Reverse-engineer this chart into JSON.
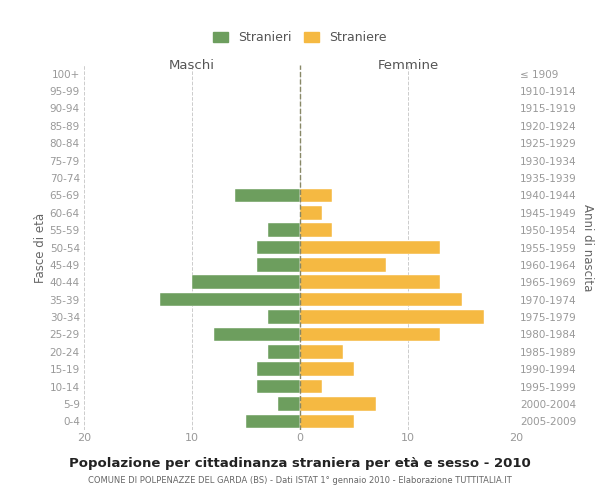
{
  "age_groups": [
    "100+",
    "95-99",
    "90-94",
    "85-89",
    "80-84",
    "75-79",
    "70-74",
    "65-69",
    "60-64",
    "55-59",
    "50-54",
    "45-49",
    "40-44",
    "35-39",
    "30-34",
    "25-29",
    "20-24",
    "15-19",
    "10-14",
    "5-9",
    "0-4"
  ],
  "birth_years": [
    "≤ 1909",
    "1910-1914",
    "1915-1919",
    "1920-1924",
    "1925-1929",
    "1930-1934",
    "1935-1939",
    "1940-1944",
    "1945-1949",
    "1950-1954",
    "1955-1959",
    "1960-1964",
    "1965-1969",
    "1970-1974",
    "1975-1979",
    "1980-1984",
    "1985-1989",
    "1990-1994",
    "1995-1999",
    "2000-2004",
    "2005-2009"
  ],
  "maschi": [
    0,
    0,
    0,
    0,
    0,
    0,
    0,
    6,
    0,
    3,
    4,
    4,
    10,
    13,
    3,
    8,
    3,
    4,
    4,
    2,
    5
  ],
  "femmine": [
    0,
    0,
    0,
    0,
    0,
    0,
    0,
    3,
    2,
    3,
    13,
    8,
    13,
    15,
    17,
    13,
    4,
    5,
    2,
    7,
    5
  ],
  "color_maschi": "#6d9e5e",
  "color_femmine": "#f5b942",
  "title": "Popolazione per cittadinanza straniera per età e sesso - 2010",
  "subtitle": "COMUNE DI POLPENAZZE DEL GARDA (BS) - Dati ISTAT 1° gennaio 2010 - Elaborazione TUTTITALIA.IT",
  "ylabel_left": "Fasce di età",
  "ylabel_right": "Anni di nascita",
  "label_maschi": "Stranieri",
  "label_femmine": "Straniere",
  "header_maschi": "Maschi",
  "header_femmine": "Femmine",
  "xlim": 20,
  "background_color": "#ffffff",
  "grid_color": "#cccccc",
  "tick_color": "#999999"
}
